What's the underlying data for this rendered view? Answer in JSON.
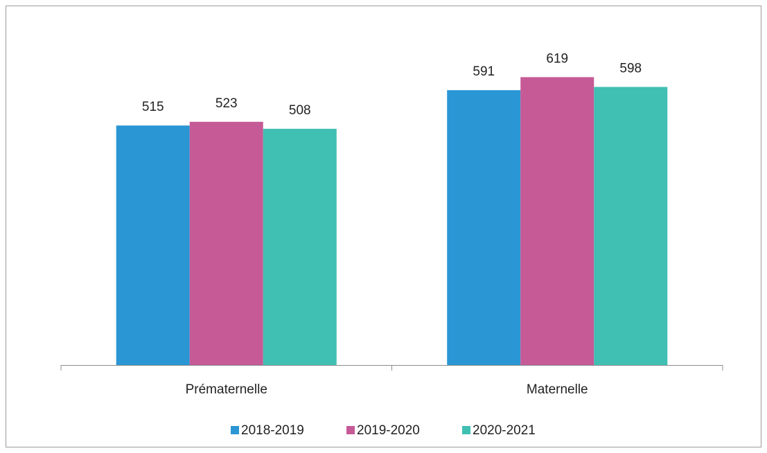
{
  "chart_data": {
    "type": "bar",
    "categories": [
      "Prématernelle",
      "Maternelle"
    ],
    "series": [
      {
        "name": "2018-2019",
        "color": "#2a96d4",
        "values": [
          515,
          591
        ]
      },
      {
        "name": "2019-2020",
        "color": "#c55a96",
        "values": [
          523,
          619
        ]
      },
      {
        "name": "2020-2021",
        "color": "#40bfb3",
        "values": [
          508,
          598
        ]
      }
    ],
    "ylim": [
      0,
      700
    ],
    "legend": "bottom"
  }
}
